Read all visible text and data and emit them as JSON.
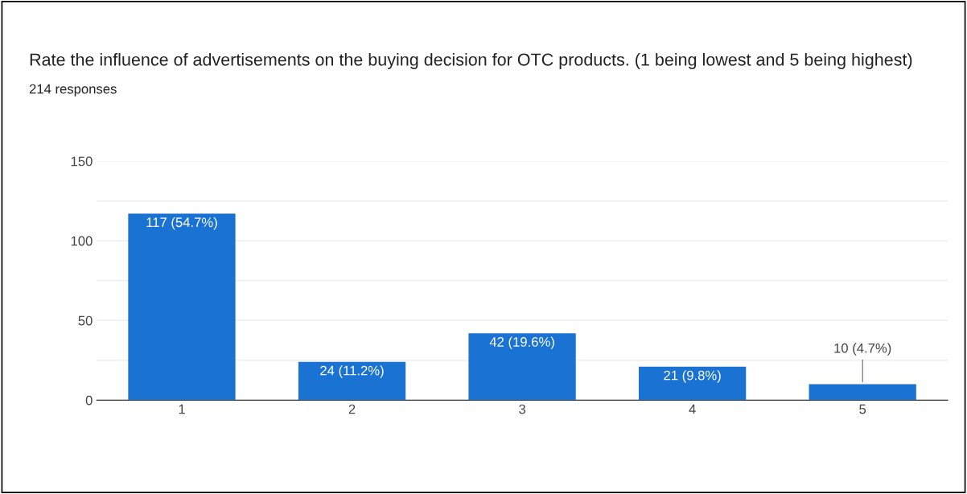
{
  "chart_data": {
    "type": "bar",
    "title": "Rate the influence of advertisements on the buying decision for OTC products. (1 being lowest and 5 being highest)",
    "subtitle": "214 responses",
    "categories": [
      "1",
      "2",
      "3",
      "4",
      "5"
    ],
    "values": [
      117,
      24,
      42,
      21,
      10
    ],
    "value_labels": [
      "117 (54.7%)",
      "24 (11.2%)",
      "42 (19.6%)",
      "21 (9.8%)",
      "10 (4.7%)"
    ],
    "color": "#1a73d2",
    "ylim": [
      0,
      150
    ],
    "yticks": [
      0,
      {
        "value": 25,
        "label": null
      },
      50,
      {
        "value": 75,
        "label": null
      },
      100,
      {
        "value": 125,
        "label": null
      },
      150
    ],
    "grid": "y",
    "legend": false
  }
}
